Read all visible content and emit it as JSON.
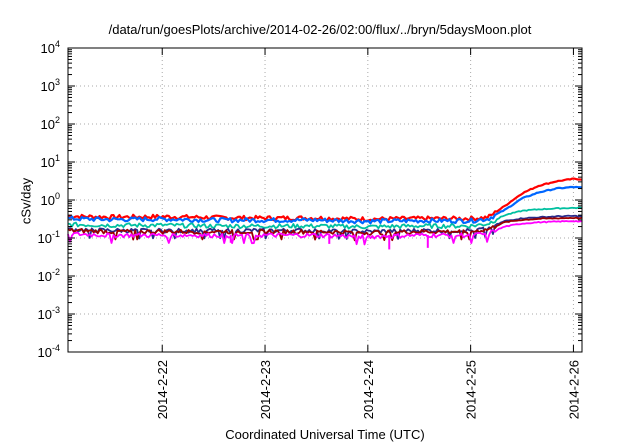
{
  "chart_data": {
    "type": "line",
    "title": "/data/run/goesPlots/archive/2014-02-26/02:00/flux/../bryn/5daysMoon.plot",
    "xlabel": "Coordinated Universal Time (UTC)",
    "ylabel": "cSv/day",
    "yscale": "log",
    "ylim": [
      0.0001,
      10000
    ],
    "y_ticks": [
      {
        "value": 0.0001,
        "base": "10",
        "exp": "-4"
      },
      {
        "value": 0.001,
        "base": "10",
        "exp": "-3"
      },
      {
        "value": 0.01,
        "base": "10",
        "exp": "-2"
      },
      {
        "value": 0.1,
        "base": "10",
        "exp": "-1"
      },
      {
        "value": 1,
        "base": "10",
        "exp": "0"
      },
      {
        "value": 10,
        "base": "10",
        "exp": "1"
      },
      {
        "value": 100,
        "base": "10",
        "exp": "2"
      },
      {
        "value": 1000,
        "base": "10",
        "exp": "3"
      },
      {
        "value": 10000,
        "base": "10",
        "exp": "4"
      }
    ],
    "xlim": [
      "2014-02-21 02:00",
      "2014-02-26 02:00"
    ],
    "x_ticks": [
      {
        "value": "2014-02-22 00:00",
        "label": "2014-2-22"
      },
      {
        "value": "2014-02-23 00:00",
        "label": "2014-2-23"
      },
      {
        "value": "2014-02-24 00:00",
        "label": "2014-2-24"
      },
      {
        "value": "2014-02-25 00:00",
        "label": "2014-2-25"
      },
      {
        "value": "2014-02-26 00:00",
        "label": "2014-2-26"
      }
    ],
    "grid": true,
    "series": [
      {
        "color": "#ff0000",
        "values": [
          [
            "2014-02-21 02:00",
            0.38
          ],
          [
            "2014-02-21 12:00",
            0.36
          ],
          [
            "2014-02-22 00:00",
            0.37
          ],
          [
            "2014-02-22 12:00",
            0.35
          ],
          [
            "2014-02-23 00:00",
            0.34
          ],
          [
            "2014-02-23 12:00",
            0.34
          ],
          [
            "2014-02-24 00:00",
            0.32
          ],
          [
            "2014-02-24 12:00",
            0.33
          ],
          [
            "2014-02-25 00:00",
            0.33
          ],
          [
            "2014-02-25 04:00",
            0.35
          ],
          [
            "2014-02-25 08:00",
            0.7
          ],
          [
            "2014-02-25 12:00",
            1.5
          ],
          [
            "2014-02-25 16:00",
            2.4
          ],
          [
            "2014-02-25 20:00",
            3.1
          ],
          [
            "2014-02-26 00:00",
            3.6
          ],
          [
            "2014-02-26 02:00",
            3.5
          ]
        ]
      },
      {
        "color": "#0066ff",
        "values": [
          [
            "2014-02-21 02:00",
            0.33
          ],
          [
            "2014-02-21 12:00",
            0.31
          ],
          [
            "2014-02-22 00:00",
            0.32
          ],
          [
            "2014-02-22 12:00",
            0.3
          ],
          [
            "2014-02-23 00:00",
            0.3
          ],
          [
            "2014-02-23 12:00",
            0.3
          ],
          [
            "2014-02-24 00:00",
            0.28
          ],
          [
            "2014-02-24 12:00",
            0.29
          ],
          [
            "2014-02-25 00:00",
            0.29
          ],
          [
            "2014-02-25 04:00",
            0.32
          ],
          [
            "2014-02-25 08:00",
            0.55
          ],
          [
            "2014-02-25 12:00",
            1.1
          ],
          [
            "2014-02-25 16:00",
            1.6
          ],
          [
            "2014-02-25 20:00",
            2.0
          ],
          [
            "2014-02-26 00:00",
            2.2
          ],
          [
            "2014-02-26 02:00",
            2.1
          ]
        ]
      },
      {
        "color": "#00c0a0",
        "values": [
          [
            "2014-02-21 02:00",
            0.23
          ],
          [
            "2014-02-21 12:00",
            0.22
          ],
          [
            "2014-02-22 00:00",
            0.22
          ],
          [
            "2014-02-22 12:00",
            0.21
          ],
          [
            "2014-02-23 00:00",
            0.21
          ],
          [
            "2014-02-23 12:00",
            0.21
          ],
          [
            "2014-02-24 00:00",
            0.2
          ],
          [
            "2014-02-24 12:00",
            0.21
          ],
          [
            "2014-02-25 00:00",
            0.21
          ],
          [
            "2014-02-25 04:00",
            0.24
          ],
          [
            "2014-02-25 08:00",
            0.4
          ],
          [
            "2014-02-25 12:00",
            0.52
          ],
          [
            "2014-02-25 16:00",
            0.57
          ],
          [
            "2014-02-25 20:00",
            0.6
          ],
          [
            "2014-02-26 00:00",
            0.62
          ],
          [
            "2014-02-26 02:00",
            0.62
          ]
        ]
      },
      {
        "color": "#2a2a8a",
        "values": [
          [
            "2014-02-21 02:00",
            0.17
          ],
          [
            "2014-02-21 12:00",
            0.16
          ],
          [
            "2014-02-22 00:00",
            0.16
          ],
          [
            "2014-02-22 12:00",
            0.16
          ],
          [
            "2014-02-23 00:00",
            0.16
          ],
          [
            "2014-02-23 12:00",
            0.16
          ],
          [
            "2014-02-24 00:00",
            0.15
          ],
          [
            "2014-02-24 12:00",
            0.16
          ],
          [
            "2014-02-25 00:00",
            0.16
          ],
          [
            "2014-02-25 04:00",
            0.18
          ],
          [
            "2014-02-25 08:00",
            0.28
          ],
          [
            "2014-02-25 12:00",
            0.33
          ],
          [
            "2014-02-25 16:00",
            0.35
          ],
          [
            "2014-02-25 20:00",
            0.37
          ],
          [
            "2014-02-26 00:00",
            0.38
          ],
          [
            "2014-02-26 02:00",
            0.37
          ]
        ]
      },
      {
        "color": "#9a0000",
        "values": [
          [
            "2014-02-21 02:00",
            0.16
          ],
          [
            "2014-02-21 12:00",
            0.15
          ],
          [
            "2014-02-22 00:00",
            0.15
          ],
          [
            "2014-02-22 12:00",
            0.15
          ],
          [
            "2014-02-23 00:00",
            0.15
          ],
          [
            "2014-02-23 12:00",
            0.15
          ],
          [
            "2014-02-24 00:00",
            0.14
          ],
          [
            "2014-02-24 12:00",
            0.15
          ],
          [
            "2014-02-25 00:00",
            0.15
          ],
          [
            "2014-02-25 04:00",
            0.17
          ],
          [
            "2014-02-25 08:00",
            0.26
          ],
          [
            "2014-02-25 12:00",
            0.3
          ],
          [
            "2014-02-25 16:00",
            0.32
          ],
          [
            "2014-02-25 20:00",
            0.33
          ],
          [
            "2014-02-26 00:00",
            0.34
          ],
          [
            "2014-02-26 02:00",
            0.33
          ]
        ]
      },
      {
        "color": "#ff00ff",
        "values": [
          [
            "2014-02-21 02:00",
            0.13
          ],
          [
            "2014-02-21 12:00",
            0.12
          ],
          [
            "2014-02-22 00:00",
            0.12
          ],
          [
            "2014-02-22 12:00",
            0.12
          ],
          [
            "2014-02-23 00:00",
            0.12
          ],
          [
            "2014-02-23 12:00",
            0.12
          ],
          [
            "2014-02-24 00:00",
            0.11
          ],
          [
            "2014-02-24 12:00",
            0.12
          ],
          [
            "2014-02-25 00:00",
            0.12
          ],
          [
            "2014-02-25 04:00",
            0.13
          ],
          [
            "2014-02-25 08:00",
            0.2
          ],
          [
            "2014-02-25 12:00",
            0.24
          ],
          [
            "2014-02-25 16:00",
            0.26
          ],
          [
            "2014-02-25 20:00",
            0.27
          ],
          [
            "2014-02-26 00:00",
            0.28
          ],
          [
            "2014-02-26 02:00",
            0.27
          ]
        ]
      }
    ],
    "dips": [
      {
        "x": "2014-02-24 05:00",
        "y": 0.05
      },
      {
        "x": "2014-02-24 14:00",
        "y": 0.055
      },
      {
        "x": "2014-02-23 15:00",
        "y": 0.07
      },
      {
        "x": "2014-02-22 16:00",
        "y": 0.075
      }
    ]
  }
}
